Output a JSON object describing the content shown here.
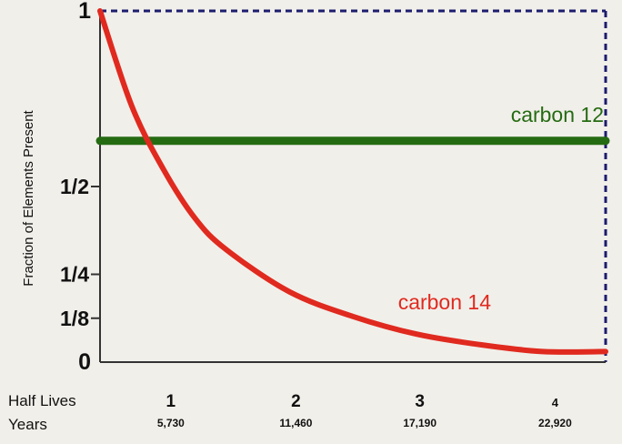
{
  "chart_data": {
    "type": "line",
    "title": "",
    "ylabel": "Fraction of Elements Present",
    "xlabel": "",
    "xlim": [
      0,
      4
    ],
    "ylim": [
      0,
      1
    ],
    "y_ticks": [
      {
        "value": 1,
        "label": "1"
      },
      {
        "value": 0.5,
        "label": "1/2"
      },
      {
        "value": 0.25,
        "label": "1/4"
      },
      {
        "value": 0.125,
        "label": "1/8"
      },
      {
        "value": 0,
        "label": "0"
      }
    ],
    "x_rows": [
      {
        "title": "Half Lives",
        "labels": [
          "1",
          "2",
          "3",
          "4"
        ]
      },
      {
        "title": "Years",
        "labels": [
          "5,730",
          "11,460",
          "17,190",
          "22,920"
        ]
      }
    ],
    "series": [
      {
        "name": "carbon 12",
        "color": "#256b12",
        "x": [
          0,
          4
        ],
        "y": [
          0.63,
          0.63
        ]
      },
      {
        "name": "carbon 14",
        "color": "#e02a1f",
        "x": [
          0,
          0.25,
          0.5,
          0.75,
          1,
          1.5,
          2,
          2.5,
          3,
          3.5,
          4
        ],
        "y": [
          1,
          0.73,
          0.55,
          0.41,
          0.32,
          0.2,
          0.13,
          0.08,
          0.05,
          0.03,
          0.03
        ]
      }
    ],
    "grid": false,
    "frame": {
      "style": "dashed",
      "color": "#1c1c6e"
    }
  }
}
